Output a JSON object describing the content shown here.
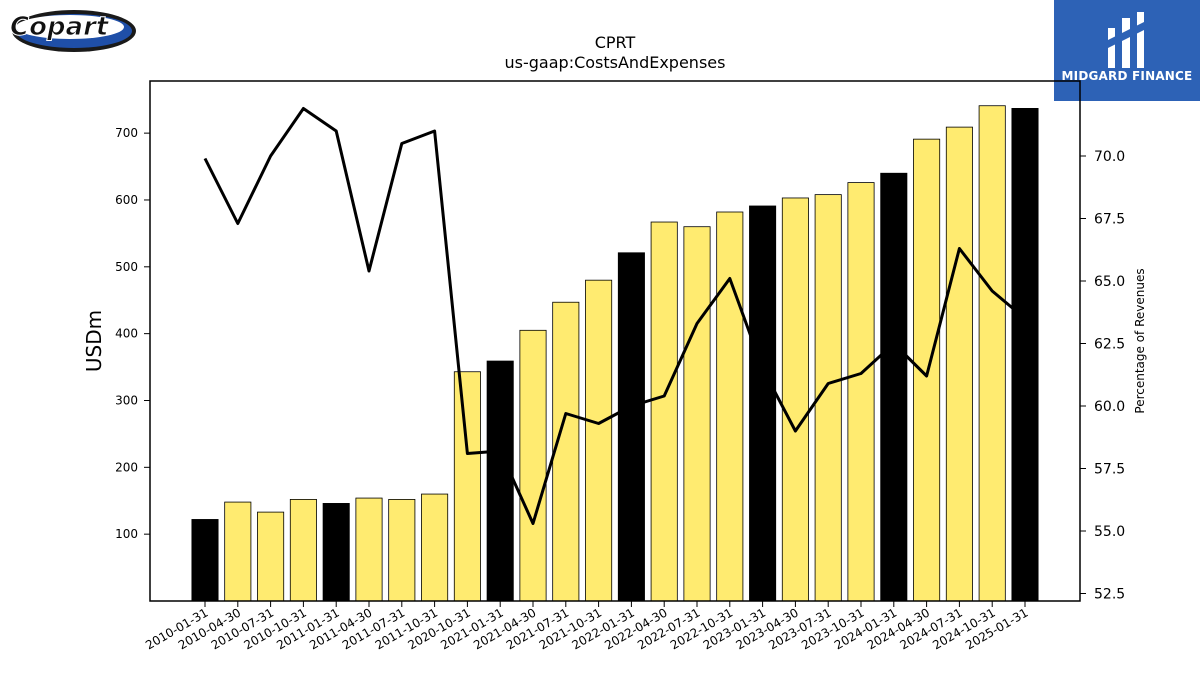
{
  "logos": {
    "left_brand": "Copart",
    "right_brand": "MIDGARD FINANCE"
  },
  "chart_data": {
    "type": "bar",
    "title": "CPRT",
    "subtitle": "us-gaap:CostsAndExpenses",
    "ylabel": "USDm",
    "y2label": "Percentage of Revenues",
    "categories": [
      "2010-01-31",
      "2010-04-30",
      "2010-07-31",
      "2010-10-31",
      "2011-01-31",
      "2011-04-30",
      "2011-07-31",
      "2011-10-31",
      "2020-10-31",
      "2021-01-31",
      "2021-04-30",
      "2021-07-31",
      "2021-10-31",
      "2022-01-31",
      "2022-04-30",
      "2022-07-31",
      "2022-10-31",
      "2023-01-31",
      "2023-04-30",
      "2023-07-31",
      "2023-10-31",
      "2024-01-31",
      "2024-04-30",
      "2024-07-31",
      "2024-10-31",
      "2025-01-31"
    ],
    "series": [
      {
        "kind": "bar",
        "axis": "left",
        "values": [
          122,
          148,
          133,
          152,
          146,
          154,
          152,
          160,
          343,
          359,
          405,
          447,
          480,
          521,
          567,
          560,
          582,
          591,
          603,
          608,
          626,
          640,
          691,
          709,
          741,
          737
        ],
        "colors": [
          "#000000",
          "#ffeb70",
          "#ffeb70",
          "#ffeb70",
          "#000000",
          "#ffeb70",
          "#ffeb70",
          "#ffeb70",
          "#ffeb70",
          "#000000",
          "#ffeb70",
          "#ffeb70",
          "#ffeb70",
          "#000000",
          "#ffeb70",
          "#ffeb70",
          "#ffeb70",
          "#000000",
          "#ffeb70",
          "#ffeb70",
          "#ffeb70",
          "#000000",
          "#ffeb70",
          "#ffeb70",
          "#ffeb70",
          "#000000"
        ]
      },
      {
        "kind": "line",
        "axis": "right",
        "color": "#000000",
        "values": [
          69.9,
          67.3,
          70.0,
          71.9,
          71.0,
          65.4,
          70.5,
          71.0,
          58.1,
          58.2,
          55.3,
          59.7,
          59.3,
          60.0,
          60.4,
          63.3,
          65.1,
          61.5,
          59.0,
          60.9,
          61.3,
          62.5,
          61.2,
          66.3,
          64.6,
          63.5
        ]
      }
    ],
    "ylim": [
      0,
      778
    ],
    "y2lim": [
      52.2,
      73.0
    ],
    "yticks": [
      100,
      200,
      300,
      400,
      500,
      600,
      700
    ],
    "y2ticks": [
      "52.5",
      "55.0",
      "57.5",
      "60.0",
      "62.5",
      "65.0",
      "67.5",
      "70.0"
    ],
    "grid": false,
    "legend": "none"
  }
}
